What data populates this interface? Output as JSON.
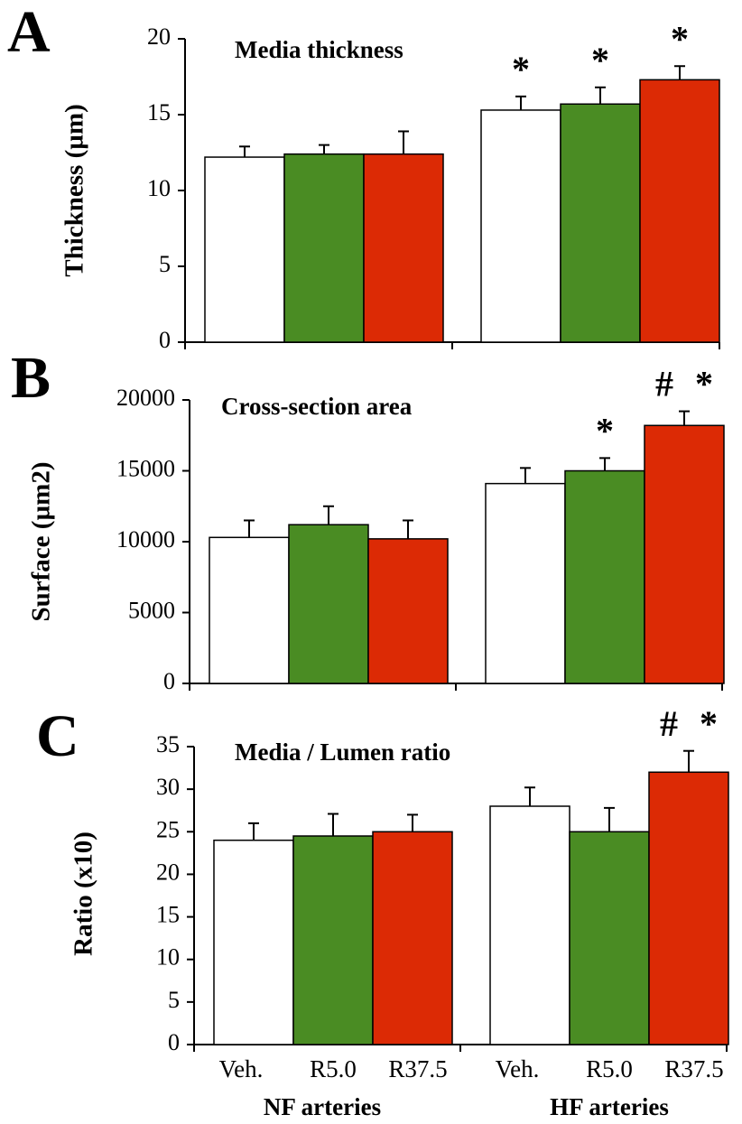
{
  "chart_data": [
    {
      "type": "bar",
      "panel": "A",
      "title": "Media thickness",
      "y_label": "Thickness (µm)",
      "ylim": [
        0,
        20
      ],
      "yticks": [
        0,
        5,
        10,
        15,
        20
      ],
      "series": [
        {
          "color": "#ffffff",
          "values": [
            12.2,
            15.3
          ],
          "errors": [
            0.7,
            0.9
          ]
        },
        {
          "color": "#4a8c23",
          "values": [
            12.4,
            15.7
          ],
          "errors": [
            0.6,
            1.1
          ]
        },
        {
          "color": "#dc2a05",
          "values": [
            12.4,
            17.3
          ],
          "errors": [
            1.5,
            0.9
          ]
        }
      ],
      "annotations": [
        {
          "series": 0,
          "category": 1,
          "text": "*"
        },
        {
          "series": 1,
          "category": 1,
          "text": "*"
        },
        {
          "series": 2,
          "category": 1,
          "text": "*"
        }
      ]
    },
    {
      "type": "bar",
      "panel": "B",
      "title": "Cross-section area",
      "y_label": "Surface (µm2)",
      "ylim": [
        0,
        20000
      ],
      "yticks": [
        0,
        5000,
        10000,
        15000,
        20000
      ],
      "series": [
        {
          "color": "#ffffff",
          "values": [
            10300,
            14100
          ],
          "errors": [
            1200,
            1100
          ]
        },
        {
          "color": "#4a8c23",
          "values": [
            11200,
            15000
          ],
          "errors": [
            1300,
            900
          ]
        },
        {
          "color": "#dc2a05",
          "values": [
            10200,
            18200
          ],
          "errors": [
            1300,
            1000
          ]
        }
      ],
      "annotations": [
        {
          "series": 1,
          "category": 1,
          "text": "*"
        },
        {
          "series": 2,
          "category": 1,
          "text": "# *"
        }
      ]
    },
    {
      "type": "bar",
      "panel": "C",
      "title": "Media / Lumen ratio",
      "y_label": "Ratio (x10)",
      "ylim": [
        0,
        35
      ],
      "yticks": [
        0,
        5,
        10,
        15,
        20,
        25,
        30,
        35
      ],
      "categories": [
        "NF arteries",
        "HF arteries"
      ],
      "series": [
        {
          "name": "Veh.",
          "color": "#ffffff",
          "values": [
            24,
            28
          ],
          "errors": [
            2,
            2.2
          ]
        },
        {
          "name": "R5.0",
          "color": "#4a8c23",
          "values": [
            24.5,
            25
          ],
          "errors": [
            2.6,
            2.8
          ]
        },
        {
          "name": "R37.5",
          "color": "#dc2a05",
          "values": [
            25,
            32
          ],
          "errors": [
            2,
            2.5
          ]
        }
      ],
      "annotations": [
        {
          "series": 2,
          "category": 1,
          "text": "# *"
        }
      ]
    }
  ]
}
